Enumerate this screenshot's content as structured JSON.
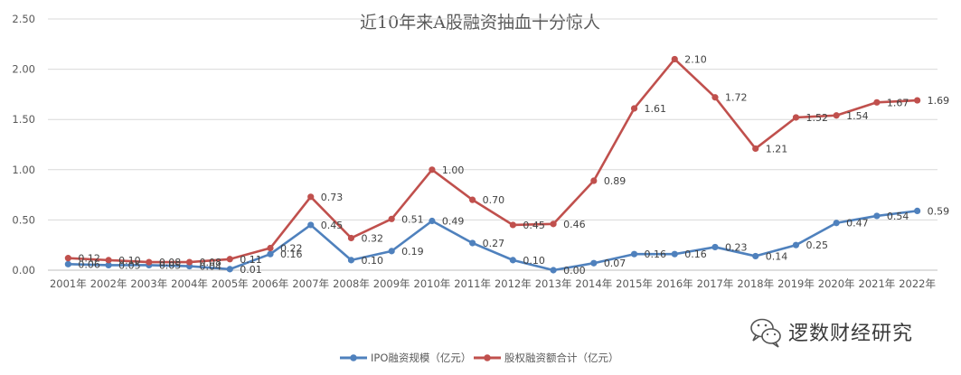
{
  "chart_data": {
    "type": "line",
    "title": "近10年来A股融资抽血十分惊人",
    "categories": [
      "2001年",
      "2002年",
      "2003年",
      "2004年",
      "2005年",
      "2006年",
      "2007年",
      "2008年",
      "2009年",
      "2010年",
      "2011年",
      "2012年",
      "2013年",
      "2014年",
      "2015年",
      "2016年",
      "2017年",
      "2018年",
      "2019年",
      "2020年",
      "2021年",
      "2022年"
    ],
    "ylim": [
      0,
      2.5
    ],
    "yticks": [
      "0.00",
      "0.50",
      "1.00",
      "1.50",
      "2.00",
      "2.50"
    ],
    "grid": true,
    "legend": "bottom",
    "series": [
      {
        "name": "IPO融资规模（亿元）",
        "color": "#4f81bd",
        "values": [
          0.06,
          0.05,
          0.05,
          0.04,
          0.01,
          0.16,
          0.45,
          0.1,
          0.19,
          0.49,
          0.27,
          0.1,
          0.0,
          0.07,
          0.16,
          0.16,
          0.23,
          0.14,
          0.25,
          0.47,
          0.54,
          0.59
        ],
        "labels": [
          "0.06",
          "0.05",
          "0.05",
          "0.04",
          "0.01",
          "0.16",
          "0.45",
          "0.10",
          "0.19",
          "0.49",
          "0.27",
          "0.10",
          "0.00",
          "0.07",
          "0.16",
          "0.16",
          "0.23",
          "0.14",
          "0.25",
          "0.47",
          "0.54",
          "0.59"
        ]
      },
      {
        "name": "股权融资额合计（亿元）",
        "color": "#c0504d",
        "values": [
          0.12,
          0.1,
          0.08,
          0.08,
          0.11,
          0.22,
          0.73,
          0.32,
          0.51,
          1.0,
          0.7,
          0.45,
          0.46,
          0.89,
          1.61,
          2.1,
          1.72,
          1.21,
          1.52,
          1.54,
          1.67,
          1.69
        ],
        "labels": [
          "0.12",
          "0.10",
          "0.08",
          "0.08",
          "0.11",
          "0.22",
          "0.73",
          "0.32",
          "0.51",
          "1.00",
          "0.70",
          "0.45",
          "0.46",
          "0.89",
          "1.61",
          "2.10",
          "1.72",
          "1.21",
          "1.52",
          "1.54",
          "1.67",
          "1.69"
        ]
      }
    ]
  },
  "watermark": {
    "text": "逻数财经研究",
    "icon": "wechat-icon"
  }
}
